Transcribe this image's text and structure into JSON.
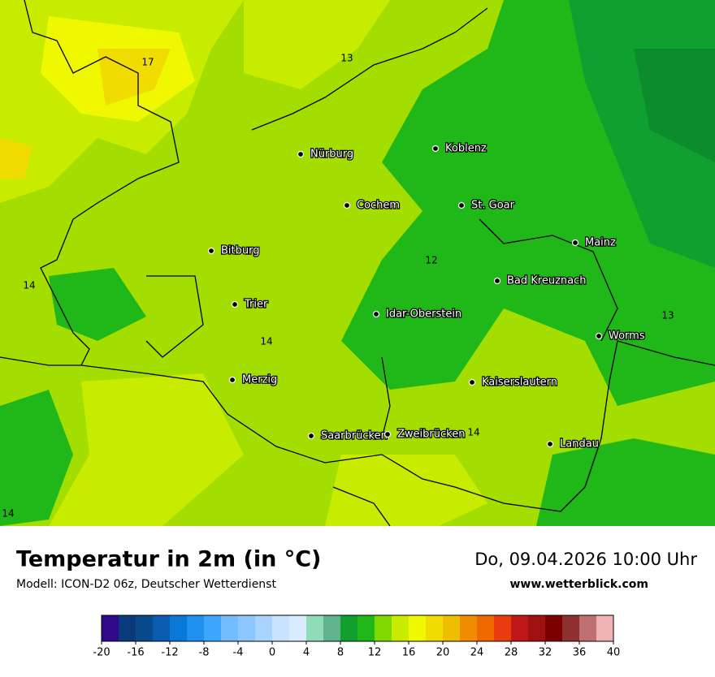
{
  "map": {
    "cities": [
      "Nürburg",
      "Koblenz",
      "Cochem",
      "St. Goar",
      "Bitburg",
      "Mainz",
      "Bad Kreuznach",
      "Trier",
      "Idar-Oberstein",
      "Worms",
      "Merzig",
      "Kaiserslautern",
      "Saarbrücken",
      "Zweibrücken",
      "Landau"
    ],
    "contour_labels": [
      17,
      13,
      12,
      14,
      13,
      14,
      14,
      14
    ]
  },
  "footer": {
    "title": "Temperatur in 2m (in °C)",
    "subtitle": "Modell: ICON-D2 06z, Deutscher Wetterdienst",
    "date": "Do, 09.04.2026 10:00 Uhr",
    "website": "www.wetterblick.com"
  },
  "colorbar": {
    "xlim": [
      -20,
      40
    ],
    "xticks": [
      -20,
      -16,
      -12,
      -8,
      -4,
      0,
      4,
      8,
      12,
      16,
      20,
      24,
      28,
      32,
      36,
      40
    ],
    "colors": [
      "#2e0a8a",
      "#083a7c",
      "#0a4a8c",
      "#0a5cb0",
      "#0a78d8",
      "#1e90f0",
      "#3ca6ff",
      "#72bcff",
      "#8cc8ff",
      "#a8d4ff",
      "#c8e2ff",
      "#d8ebff",
      "#90dcb8",
      "#60b48c",
      "#10a030",
      "#20b818",
      "#80d800",
      "#c8ec00",
      "#f0f800",
      "#f0dc00",
      "#f0be00",
      "#f08c00",
      "#f06800",
      "#e83c10",
      "#c01818",
      "#a01010",
      "#7c0000",
      "#8c3030",
      "#c07070",
      "#f0b4b4"
    ]
  }
}
